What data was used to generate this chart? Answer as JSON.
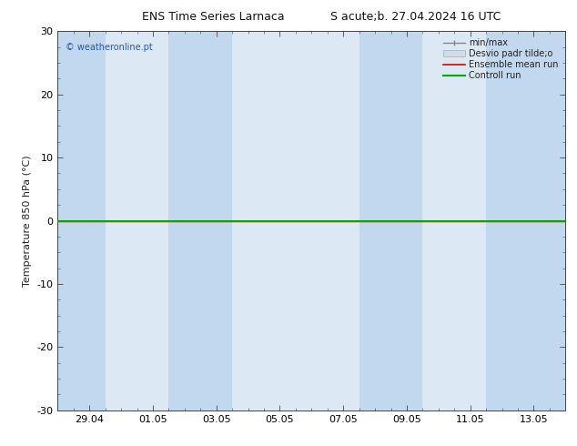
{
  "title1": "ENS Time Series Larnaca",
  "title2": "S acute;b. 27.04.2024 16 UTC",
  "ylabel": "Temperature 850 hPa (°C)",
  "ylim": [
    -30,
    30
  ],
  "yticks": [
    -30,
    -20,
    -10,
    0,
    10,
    20,
    30
  ],
  "xtick_labels": [
    "29.04",
    "01.05",
    "03.05",
    "05.05",
    "07.05",
    "09.05",
    "11.05",
    "13.05"
  ],
  "xmin": 0.0,
  "xmax": 16.0,
  "background_color": "#ffffff",
  "plot_bg_color": "#dce9f5",
  "band_color": "#c2d8ee",
  "zero_line_color": "#111111",
  "watermark": "© weatheronline.pt",
  "watermark_color": "#2255bb",
  "legend_labels": [
    "min/max",
    "Desvio padr tilde;o",
    "Ensemble mean run",
    "Controll run"
  ],
  "legend_colors": [
    "#888888",
    "#aaaaaa",
    "#dd0000",
    "#00aa00"
  ],
  "shaded_bands": [
    [
      0.0,
      1.5
    ],
    [
      3.5,
      5.5
    ],
    [
      9.5,
      11.5
    ],
    [
      13.5,
      16.0
    ]
  ],
  "controll_run_y": 0,
  "ensemble_mean_y": 0,
  "tick_label_fontsize": 8,
  "axis_label_fontsize": 8,
  "title_fontsize": 9,
  "watermark_fontsize": 7,
  "legend_fontsize": 7
}
